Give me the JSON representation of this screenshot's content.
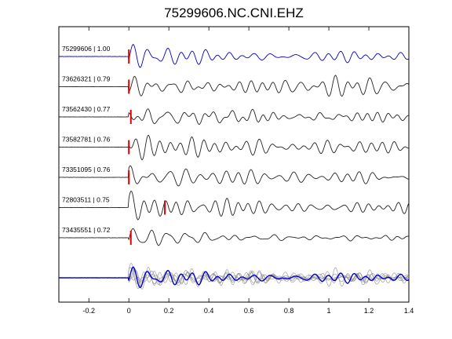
{
  "chart_data": {
    "type": "line",
    "title": "75299606.NC.CNI.EHZ",
    "xlabel": "",
    "ylabel": "",
    "xlim": [
      -0.35,
      1.4
    ],
    "x_ticks": [
      "-0.2",
      "0",
      "0.2",
      "0.4",
      "0.6",
      "0.8",
      "1",
      "1.2",
      "1.4"
    ],
    "x_tick_values": [
      -0.2,
      0,
      0.2,
      0.4,
      0.6,
      0.8,
      1.0,
      1.2,
      1.4
    ],
    "grid": false,
    "colors": {
      "reference": "#0000cc",
      "trace": "#222222",
      "pick": "#dd0000",
      "stack": "#888888"
    },
    "traces": [
      {
        "id": "75299606",
        "label": "75299606 | 1.00",
        "corr": 1.0,
        "pick_time": 0.0,
        "reference": true
      },
      {
        "id": "73626321",
        "label": "73626321 | 0.79",
        "corr": 0.79,
        "pick_time": 0.0,
        "reference": false
      },
      {
        "id": "73562430",
        "label": "73562430 | 0.77",
        "corr": 0.77,
        "pick_time": 0.01,
        "reference": false
      },
      {
        "id": "73582781",
        "label": "73582781 | 0.76",
        "corr": 0.76,
        "pick_time": 0.0,
        "reference": false
      },
      {
        "id": "73351095",
        "label": "73351095 | 0.76",
        "corr": 0.76,
        "pick_time": 0.0,
        "reference": false
      },
      {
        "id": "72803511",
        "label": "72803511 | 0.75",
        "corr": 0.75,
        "pick_time": 0.18,
        "reference": false
      },
      {
        "id": "73435551",
        "label": "73435551 | 0.72",
        "corr": 0.72,
        "pick_time": 0.01,
        "reference": false
      }
    ],
    "stack": {
      "description": "overlay of all traces"
    }
  }
}
